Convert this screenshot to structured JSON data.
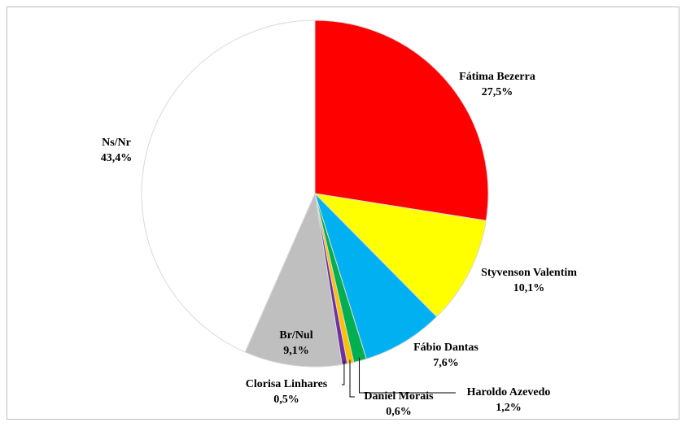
{
  "chart_data": {
    "type": "pie",
    "categories": [
      "Fátima Bezerra",
      "Styvenson Valentim",
      "Fábio Dantas",
      "Haroldo Azevedo",
      "Daniel Morais",
      "Clorisa Linhares",
      "Br/Nul",
      "Ns/Nr"
    ],
    "values": [
      27.5,
      10.1,
      7.6,
      1.2,
      0.6,
      0.5,
      9.1,
      43.4
    ],
    "value_labels": [
      "27,5%",
      "10,1%",
      "7,6%",
      "1,2%",
      "0,6%",
      "0,5%",
      "9,1%",
      "43,4%"
    ],
    "colors": [
      "#ff0000",
      "#ffff00",
      "#00b0f0",
      "#00b050",
      "#ffc000",
      "#7030a0",
      "#bfbfbf",
      "#ffffff"
    ]
  }
}
